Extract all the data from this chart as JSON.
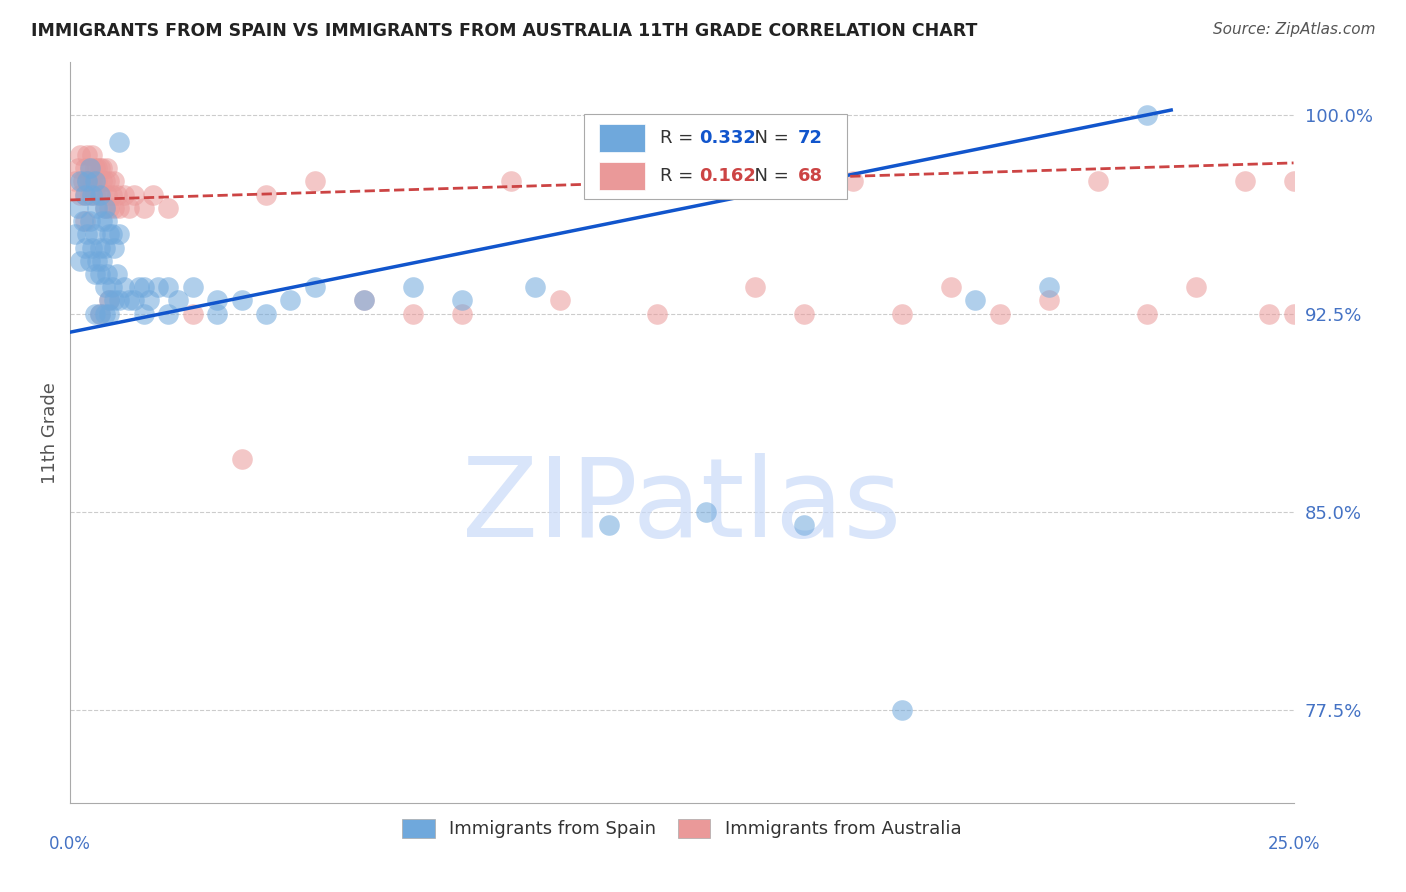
{
  "title": "IMMIGRANTS FROM SPAIN VS IMMIGRANTS FROM AUSTRALIA 11TH GRADE CORRELATION CHART",
  "source": "Source: ZipAtlas.com",
  "ylabel": "11th Grade",
  "yticks": [
    77.5,
    85.0,
    92.5,
    100.0
  ],
  "ytick_labels": [
    "77.5%",
    "85.0%",
    "92.5%",
    "100.0%"
  ],
  "xmin": 0.0,
  "xmax": 25.0,
  "ymin": 74.0,
  "ymax": 102.0,
  "blue_R": 0.332,
  "blue_N": 72,
  "pink_R": 0.162,
  "pink_N": 68,
  "blue_color": "#6fa8dc",
  "pink_color": "#ea9999",
  "blue_line_color": "#1155cc",
  "pink_line_color": "#cc4444",
  "watermark_color": "#c9daf8",
  "watermark_text": "ZIPatlas",
  "blue_scatter_x": [
    0.1,
    0.15,
    0.2,
    0.2,
    0.25,
    0.3,
    0.3,
    0.35,
    0.35,
    0.4,
    0.4,
    0.4,
    0.45,
    0.45,
    0.5,
    0.5,
    0.5,
    0.55,
    0.55,
    0.6,
    0.6,
    0.6,
    0.65,
    0.65,
    0.7,
    0.7,
    0.7,
    0.75,
    0.75,
    0.8,
    0.8,
    0.85,
    0.85,
    0.9,
    0.9,
    0.95,
    1.0,
    1.0,
    1.1,
    1.2,
    1.3,
    1.4,
    1.5,
    1.6,
    1.8,
    2.0,
    2.2,
    2.5,
    3.0,
    3.5,
    4.0,
    4.5,
    5.0,
    6.0,
    7.0,
    8.0,
    9.5,
    11.0,
    13.0,
    15.0,
    17.0,
    18.5,
    20.0,
    22.0,
    0.5,
    0.6,
    0.7,
    0.8,
    1.0,
    1.5,
    2.0,
    3.0
  ],
  "blue_scatter_y": [
    95.5,
    96.5,
    94.5,
    97.5,
    96.0,
    95.0,
    97.0,
    95.5,
    97.5,
    94.5,
    96.0,
    98.0,
    95.0,
    97.0,
    94.0,
    95.5,
    97.5,
    94.5,
    96.5,
    94.0,
    95.0,
    97.0,
    94.5,
    96.0,
    93.5,
    95.0,
    96.5,
    94.0,
    96.0,
    93.0,
    95.5,
    93.5,
    95.5,
    93.0,
    95.0,
    94.0,
    93.0,
    95.5,
    93.5,
    93.0,
    93.0,
    93.5,
    93.5,
    93.0,
    93.5,
    93.5,
    93.0,
    93.5,
    93.0,
    93.0,
    92.5,
    93.0,
    93.5,
    93.0,
    93.5,
    93.0,
    93.5,
    84.5,
    85.0,
    84.5,
    77.5,
    93.0,
    93.5,
    100.0,
    92.5,
    92.5,
    92.5,
    92.5,
    99.0,
    92.5,
    92.5,
    92.5
  ],
  "pink_scatter_x": [
    0.1,
    0.15,
    0.2,
    0.2,
    0.25,
    0.3,
    0.3,
    0.35,
    0.35,
    0.4,
    0.4,
    0.45,
    0.45,
    0.5,
    0.5,
    0.55,
    0.55,
    0.6,
    0.6,
    0.65,
    0.65,
    0.7,
    0.7,
    0.75,
    0.75,
    0.8,
    0.8,
    0.85,
    0.9,
    0.9,
    0.95,
    1.0,
    1.1,
    1.2,
    1.3,
    1.5,
    1.7,
    2.0,
    2.5,
    3.5,
    4.0,
    5.0,
    6.0,
    7.0,
    8.0,
    9.0,
    10.0,
    11.0,
    12.0,
    13.0,
    14.0,
    15.0,
    16.0,
    17.0,
    18.0,
    19.0,
    20.0,
    21.0,
    22.0,
    23.0,
    24.0,
    24.5,
    25.0,
    25.0,
    0.3,
    0.4,
    0.6,
    0.8
  ],
  "pink_scatter_y": [
    97.5,
    98.0,
    97.0,
    98.5,
    97.5,
    97.0,
    98.0,
    97.5,
    98.5,
    97.0,
    98.0,
    97.5,
    98.5,
    97.0,
    98.0,
    97.5,
    98.0,
    97.0,
    98.0,
    97.5,
    98.0,
    96.5,
    97.5,
    97.0,
    98.0,
    96.5,
    97.5,
    97.0,
    96.5,
    97.5,
    97.0,
    96.5,
    97.0,
    96.5,
    97.0,
    96.5,
    97.0,
    96.5,
    92.5,
    87.0,
    97.0,
    97.5,
    93.0,
    92.5,
    92.5,
    97.5,
    93.0,
    97.5,
    92.5,
    97.5,
    93.5,
    92.5,
    97.5,
    92.5,
    93.5,
    92.5,
    93.0,
    97.5,
    92.5,
    93.5,
    97.5,
    92.5,
    97.5,
    92.5,
    96.0,
    97.5,
    92.5,
    93.0
  ],
  "blue_line_x0": 0.0,
  "blue_line_x1": 22.5,
  "blue_line_y0": 91.8,
  "blue_line_y1": 100.2,
  "pink_line_x0": 0.0,
  "pink_line_x1": 25.0,
  "pink_line_y0": 96.8,
  "pink_line_y1": 98.2
}
